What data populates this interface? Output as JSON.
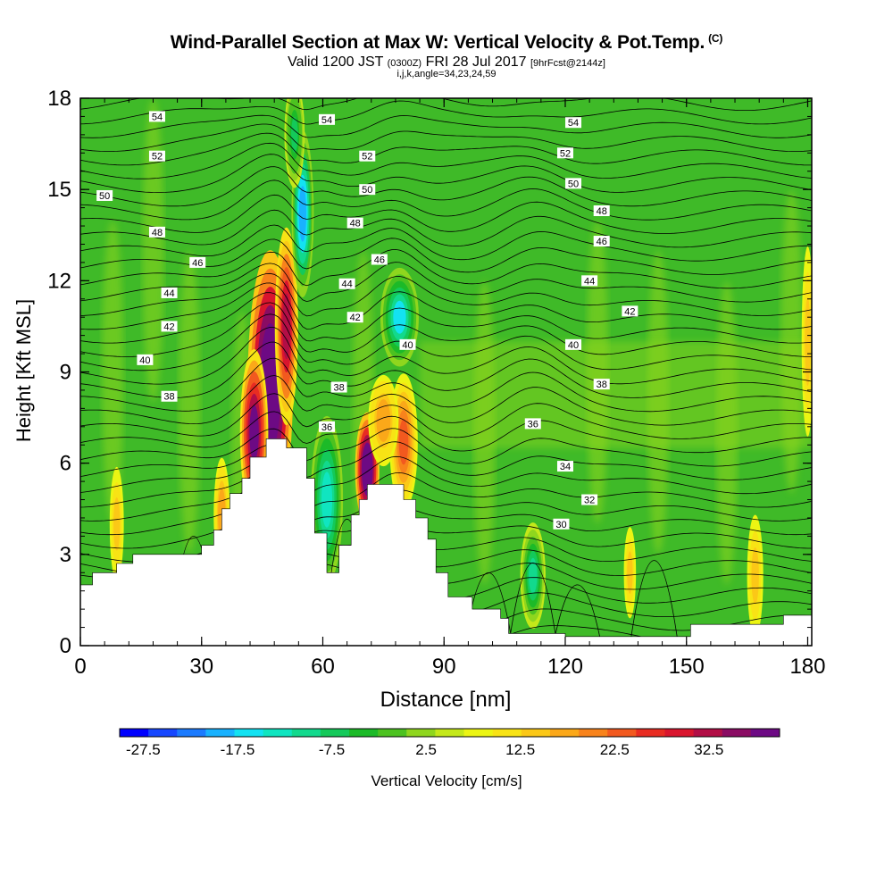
{
  "title": "Wind-Parallel Section at Max W: Vertical Velocity & Pot.Temp.",
  "title_mark": "(C)",
  "subtitle": {
    "valid": "Valid 1200 JST",
    "utc": "(0300Z)",
    "date": "FRI 28 Jul 2017",
    "fcst": "[9hrFcst@2144z]"
  },
  "subtitle2": "i,j,k,angle=34,23,24,59",
  "colors": {
    "background_field": "#3fba28",
    "light_green": "#8fd61e",
    "scale": [
      "#0000ff",
      "#1747ff",
      "#1c7bff",
      "#19b2ff",
      "#13e2f2",
      "#10e5c0",
      "#12d98d",
      "#14c95a",
      "#1cba28",
      "#4cc220",
      "#8fd61e",
      "#c4e81a",
      "#ecf513",
      "#f8e315",
      "#fbc817",
      "#fba819",
      "#f8831c",
      "#f2591f",
      "#e82c22",
      "#d9152e",
      "#b20e46",
      "#8a0c63",
      "#6d0a84"
    ],
    "terrain": "#ffffff"
  },
  "chart_data": {
    "type": "heatmap",
    "xlabel": "Distance [nm]",
    "ylabel": "Height [Kft MSL]",
    "xlim": [
      0,
      181
    ],
    "ylim": [
      0,
      18
    ],
    "xticks": [
      0,
      30,
      60,
      90,
      120,
      150,
      180
    ],
    "yticks": [
      0,
      3,
      6,
      9,
      12,
      15,
      18
    ],
    "colorbar": {
      "label": "Vertical Velocity [cm/s]",
      "ticks": [
        "-27.5",
        "-17.5",
        "-7.5",
        "2.5",
        "12.5",
        "22.5",
        "32.5"
      ],
      "range": [
        -30,
        40
      ],
      "step": 2.5
    },
    "terrain_profile": [
      [
        0,
        2
      ],
      [
        3,
        2
      ],
      [
        3,
        2.4
      ],
      [
        9,
        2.4
      ],
      [
        9,
        2.7
      ],
      [
        13,
        2.7
      ],
      [
        13,
        3
      ],
      [
        30,
        3
      ],
      [
        30,
        3.3
      ],
      [
        33,
        3.3
      ],
      [
        33,
        3.8
      ],
      [
        35,
        3.8
      ],
      [
        35,
        4.5
      ],
      [
        37,
        4.5
      ],
      [
        37,
        5
      ],
      [
        40,
        5
      ],
      [
        40,
        5.5
      ],
      [
        42,
        5.5
      ],
      [
        42,
        6.2
      ],
      [
        46,
        6.2
      ],
      [
        46,
        6.8
      ],
      [
        51,
        6.8
      ],
      [
        51,
        6.5
      ],
      [
        56,
        6.5
      ],
      [
        56,
        5.5
      ],
      [
        58,
        5.5
      ],
      [
        58,
        3.7
      ],
      [
        61,
        3.7
      ],
      [
        61,
        2.4
      ],
      [
        64,
        2.4
      ],
      [
        64,
        3.3
      ],
      [
        67,
        3.3
      ],
      [
        67,
        4.3
      ],
      [
        69,
        4.3
      ],
      [
        69,
        4.8
      ],
      [
        71,
        4.8
      ],
      [
        71,
        5.3
      ],
      [
        80,
        5.3
      ],
      [
        80,
        4.8
      ],
      [
        83,
        4.8
      ],
      [
        83,
        4.2
      ],
      [
        86,
        4.2
      ],
      [
        86,
        3.5
      ],
      [
        88,
        3.5
      ],
      [
        88,
        2.4
      ],
      [
        91,
        2.4
      ],
      [
        91,
        1.6
      ],
      [
        97,
        1.6
      ],
      [
        97,
        1.2
      ],
      [
        104,
        1.2
      ],
      [
        104,
        0.9
      ],
      [
        106,
        0.9
      ],
      [
        106,
        0.4
      ],
      [
        120,
        0.4
      ],
      [
        120,
        0.3
      ],
      [
        151,
        0.3
      ],
      [
        151,
        0.7
      ],
      [
        174,
        0.7
      ],
      [
        174,
        1
      ],
      [
        181,
        1
      ]
    ],
    "w_features": [
      {
        "x": 47,
        "y": 8.5,
        "rx": 4.5,
        "ry": 3.6,
        "w": 37
      },
      {
        "x": 51,
        "y": 10.5,
        "rx": 2.3,
        "ry": 2.6,
        "w": 22
      },
      {
        "x": 43,
        "y": 7,
        "rx": 2.8,
        "ry": 2.2,
        "w": 25
      },
      {
        "x": 55,
        "y": 14.2,
        "rx": 2.2,
        "ry": 2.2,
        "w": -22
      },
      {
        "x": 53,
        "y": 16.8,
        "rx": 2,
        "ry": 1.4,
        "w": -11
      },
      {
        "x": 79,
        "y": 10.8,
        "rx": 3.8,
        "ry": 1.3,
        "w": -18
      },
      {
        "x": 61,
        "y": 4.8,
        "rx": 3.2,
        "ry": 2.2,
        "w": -16
      },
      {
        "x": 71,
        "y": 5.8,
        "rx": 2.4,
        "ry": 1.5,
        "w": 30
      },
      {
        "x": 80,
        "y": 6.7,
        "rx": 2.8,
        "ry": 1.8,
        "w": 14
      },
      {
        "x": 75,
        "y": 7.4,
        "rx": 3,
        "ry": 1.2,
        "w": 9
      },
      {
        "x": 112,
        "y": 2.3,
        "rx": 2.5,
        "ry": 1.4,
        "w": -15
      },
      {
        "x": 35,
        "y": 4.3,
        "rx": 1.6,
        "ry": 1.5,
        "w": 9
      },
      {
        "x": 9,
        "y": 4,
        "rx": 1.4,
        "ry": 1.5,
        "w": 6
      },
      {
        "x": 167,
        "y": 2.3,
        "rx": 1.6,
        "ry": 1.6,
        "w": 7
      },
      {
        "x": 136,
        "y": 2.4,
        "rx": 1.2,
        "ry": 1.2,
        "w": 7
      },
      {
        "x": 180,
        "y": 10,
        "rx": 1.2,
        "ry": 2.5,
        "w": 6
      }
    ],
    "theta_labels": [
      {
        "x": 19,
        "y": 17.4,
        "text": "54"
      },
      {
        "x": 61,
        "y": 17.3,
        "text": "54"
      },
      {
        "x": 122,
        "y": 17.2,
        "text": "54"
      },
      {
        "x": 19,
        "y": 16.1,
        "text": "52"
      },
      {
        "x": 71,
        "y": 16.1,
        "text": "52"
      },
      {
        "x": 120,
        "y": 16.2,
        "text": "52"
      },
      {
        "x": 6,
        "y": 14.8,
        "text": "50"
      },
      {
        "x": 71,
        "y": 15.0,
        "text": "50"
      },
      {
        "x": 122,
        "y": 15.2,
        "text": "50"
      },
      {
        "x": 19,
        "y": 13.6,
        "text": "48"
      },
      {
        "x": 68,
        "y": 13.9,
        "text": "48"
      },
      {
        "x": 129,
        "y": 14.3,
        "text": "48"
      },
      {
        "x": 29,
        "y": 12.6,
        "text": "46"
      },
      {
        "x": 74,
        "y": 12.7,
        "text": "46"
      },
      {
        "x": 129,
        "y": 13.3,
        "text": "46"
      },
      {
        "x": 22,
        "y": 11.6,
        "text": "44"
      },
      {
        "x": 66,
        "y": 11.9,
        "text": "44"
      },
      {
        "x": 126,
        "y": 12.0,
        "text": "44"
      },
      {
        "x": 22,
        "y": 10.5,
        "text": "42"
      },
      {
        "x": 68,
        "y": 10.8,
        "text": "42"
      },
      {
        "x": 136,
        "y": 11.0,
        "text": "42"
      },
      {
        "x": 16,
        "y": 9.4,
        "text": "40"
      },
      {
        "x": 81,
        "y": 9.9,
        "text": "40"
      },
      {
        "x": 122,
        "y": 9.9,
        "text": "40"
      },
      {
        "x": 22,
        "y": 8.2,
        "text": "38"
      },
      {
        "x": 64,
        "y": 8.5,
        "text": "38"
      },
      {
        "x": 129,
        "y": 8.6,
        "text": "38"
      },
      {
        "x": 61,
        "y": 7.2,
        "text": "36"
      },
      {
        "x": 112,
        "y": 7.3,
        "text": "36"
      },
      {
        "x": 120,
        "y": 5.9,
        "text": "34"
      },
      {
        "x": 126,
        "y": 4.8,
        "text": "32"
      },
      {
        "x": 119,
        "y": 4.0,
        "text": "30"
      }
    ]
  }
}
